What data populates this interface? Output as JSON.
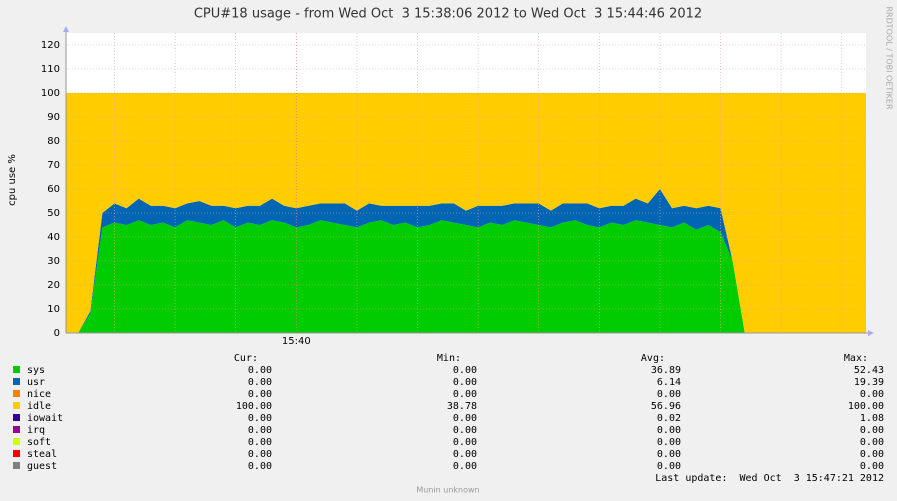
{
  "chart_data": {
    "type": "stacked-area",
    "title": "CPU#18 usage - from Wed Oct  3 15:38:06 2012 to Wed Oct  3 15:44:46 2012",
    "ylabel": "cpu use %",
    "side_text": "RRDTOOL / TOBI OETIKER",
    "footer": "Munin unknown",
    "last_update": "Last update:  Wed Oct  3 15:47:21 2012",
    "ylim": [
      0,
      125
    ],
    "yticks": [
      0,
      10,
      20,
      30,
      40,
      50,
      60,
      70,
      80,
      90,
      100,
      110,
      120
    ],
    "grid": true,
    "categories": [
      null,
      null,
      null,
      null,
      null,
      null,
      null,
      null,
      null,
      null,
      null,
      null,
      null,
      null,
      null,
      null,
      null,
      null,
      null,
      "15:40",
      null,
      null,
      null,
      null,
      null,
      null,
      null,
      null,
      null,
      null,
      null,
      null,
      null,
      null,
      null,
      null,
      null,
      null,
      null,
      null,
      null,
      null,
      null,
      null,
      null,
      null,
      null,
      null,
      null,
      null,
      null,
      null,
      null,
      null,
      null,
      null,
      null,
      null,
      null,
      null,
      null,
      null,
      null,
      null,
      null,
      null,
      null
    ],
    "stats_headers": [
      "Cur:",
      "Min:",
      "Avg:",
      "Max:"
    ],
    "series": [
      {
        "name": "sys",
        "color": "#00cc00",
        "stats": [
          "0.00",
          "0.00",
          "36.89",
          "52.43"
        ],
        "values": [
          0,
          0,
          8,
          44,
          46,
          45,
          47,
          45,
          46,
          44,
          47,
          46,
          45,
          47,
          44,
          46,
          45,
          47,
          46,
          44,
          45,
          47,
          46,
          45,
          44,
          46,
          47,
          45,
          46,
          44,
          45,
          47,
          46,
          45,
          44,
          46,
          45,
          47,
          46,
          45,
          44,
          46,
          47,
          45,
          44,
          46,
          45,
          47,
          46,
          45,
          44,
          46,
          43,
          45,
          42,
          30,
          0,
          0,
          0,
          0,
          0,
          0,
          0,
          0,
          0,
          0,
          0
        ]
      },
      {
        "name": "usr",
        "color": "#0066b3",
        "stats": [
          "0.00",
          "0.00",
          "6.14",
          "19.39"
        ],
        "values": [
          0,
          0,
          1,
          6,
          8,
          7,
          9,
          8,
          7,
          8,
          7,
          9,
          8,
          6,
          8,
          7,
          8,
          9,
          7,
          8,
          8,
          7,
          8,
          9,
          7,
          8,
          6,
          8,
          7,
          9,
          8,
          7,
          8,
          6,
          9,
          7,
          8,
          7,
          8,
          9,
          7,
          8,
          7,
          9,
          8,
          7,
          8,
          9,
          8,
          15,
          8,
          7,
          9,
          8,
          10,
          0,
          0,
          0,
          0,
          0,
          0,
          0,
          0,
          0,
          0,
          0,
          0
        ]
      },
      {
        "name": "nice",
        "color": "#ff8000",
        "stats": [
          "0.00",
          "0.00",
          "0.00",
          "0.00"
        ],
        "values": [
          0,
          0,
          0,
          0,
          0,
          0,
          0,
          0,
          0,
          0,
          0,
          0,
          0,
          0,
          0,
          0,
          0,
          0,
          0,
          0,
          0,
          0,
          0,
          0,
          0,
          0,
          0,
          0,
          0,
          0,
          0,
          0,
          0,
          0,
          0,
          0,
          0,
          0,
          0,
          0,
          0,
          0,
          0,
          0,
          0,
          0,
          0,
          0,
          0,
          0,
          0,
          0,
          0,
          0,
          0,
          0,
          0,
          0,
          0,
          0,
          0,
          0,
          0,
          0,
          0,
          0,
          0
        ]
      },
      {
        "name": "idle",
        "color": "#ffcc00",
        "stats": [
          "100.00",
          "38.78",
          "56.96",
          "100.00"
        ],
        "values": [
          100,
          100,
          91,
          50,
          46,
          48,
          44,
          47,
          47,
          48,
          46,
          45,
          47,
          47,
          48,
          47,
          47,
          44,
          47,
          48,
          47,
          46,
          46,
          46,
          49,
          46,
          47,
          47,
          47,
          47,
          47,
          46,
          46,
          49,
          47,
          47,
          47,
          46,
          46,
          46,
          49,
          46,
          46,
          46,
          48,
          47,
          47,
          44,
          46,
          40,
          48,
          47,
          48,
          47,
          48,
          70,
          100,
          100,
          100,
          100,
          100,
          100,
          100,
          100,
          100,
          100,
          100
        ]
      },
      {
        "name": "iowait",
        "color": "#330099",
        "stats": [
          "0.00",
          "0.00",
          "0.02",
          "1.08"
        ],
        "values": [
          0,
          0,
          0,
          0,
          0,
          0,
          0,
          0,
          0,
          0,
          0,
          0,
          0,
          0,
          0,
          0,
          0,
          0,
          0,
          0,
          0,
          0,
          0,
          0,
          0,
          0,
          0,
          0,
          0,
          0,
          0,
          0,
          0,
          0,
          0,
          0,
          0,
          0,
          0,
          0,
          0,
          0,
          0,
          0,
          0,
          0,
          0,
          0,
          0,
          0,
          0,
          0,
          0,
          0,
          0,
          0,
          0,
          0,
          0,
          0,
          0,
          0,
          0,
          0,
          0,
          0,
          0
        ]
      },
      {
        "name": "irq",
        "color": "#990099",
        "stats": [
          "0.00",
          "0.00",
          "0.00",
          "0.00"
        ],
        "values": [
          0,
          0,
          0,
          0,
          0,
          0,
          0,
          0,
          0,
          0,
          0,
          0,
          0,
          0,
          0,
          0,
          0,
          0,
          0,
          0,
          0,
          0,
          0,
          0,
          0,
          0,
          0,
          0,
          0,
          0,
          0,
          0,
          0,
          0,
          0,
          0,
          0,
          0,
          0,
          0,
          0,
          0,
          0,
          0,
          0,
          0,
          0,
          0,
          0,
          0,
          0,
          0,
          0,
          0,
          0,
          0,
          0,
          0,
          0,
          0,
          0,
          0,
          0,
          0,
          0,
          0,
          0
        ]
      },
      {
        "name": "soft",
        "color": "#ccff00",
        "stats": [
          "0.00",
          "0.00",
          "0.00",
          "0.00"
        ],
        "values": [
          0,
          0,
          0,
          0,
          0,
          0,
          0,
          0,
          0,
          0,
          0,
          0,
          0,
          0,
          0,
          0,
          0,
          0,
          0,
          0,
          0,
          0,
          0,
          0,
          0,
          0,
          0,
          0,
          0,
          0,
          0,
          0,
          0,
          0,
          0,
          0,
          0,
          0,
          0,
          0,
          0,
          0,
          0,
          0,
          0,
          0,
          0,
          0,
          0,
          0,
          0,
          0,
          0,
          0,
          0,
          0,
          0,
          0,
          0,
          0,
          0,
          0,
          0,
          0,
          0,
          0,
          0
        ]
      },
      {
        "name": "steal",
        "color": "#ff0000",
        "stats": [
          "0.00",
          "0.00",
          "0.00",
          "0.00"
        ],
        "values": [
          0,
          0,
          0,
          0,
          0,
          0,
          0,
          0,
          0,
          0,
          0,
          0,
          0,
          0,
          0,
          0,
          0,
          0,
          0,
          0,
          0,
          0,
          0,
          0,
          0,
          0,
          0,
          0,
          0,
          0,
          0,
          0,
          0,
          0,
          0,
          0,
          0,
          0,
          0,
          0,
          0,
          0,
          0,
          0,
          0,
          0,
          0,
          0,
          0,
          0,
          0,
          0,
          0,
          0,
          0,
          0,
          0,
          0,
          0,
          0,
          0,
          0,
          0,
          0,
          0,
          0,
          0
        ]
      },
      {
        "name": "guest",
        "color": "#808080",
        "stats": [
          "0.00",
          "0.00",
          "0.00",
          "0.00"
        ],
        "values": [
          0,
          0,
          0,
          0,
          0,
          0,
          0,
          0,
          0,
          0,
          0,
          0,
          0,
          0,
          0,
          0,
          0,
          0,
          0,
          0,
          0,
          0,
          0,
          0,
          0,
          0,
          0,
          0,
          0,
          0,
          0,
          0,
          0,
          0,
          0,
          0,
          0,
          0,
          0,
          0,
          0,
          0,
          0,
          0,
          0,
          0,
          0,
          0,
          0,
          0,
          0,
          0,
          0,
          0,
          0,
          0,
          0,
          0,
          0,
          0,
          0,
          0,
          0,
          0,
          0,
          0,
          0
        ]
      }
    ]
  }
}
